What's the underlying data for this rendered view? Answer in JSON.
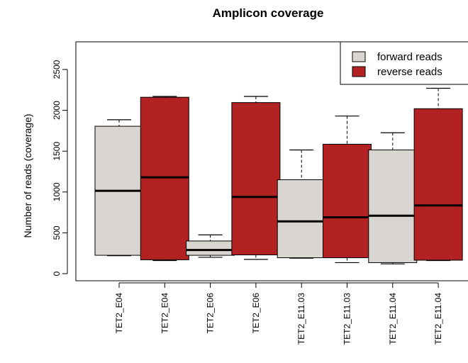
{
  "colors": {
    "forward": "#d9d6d1",
    "reverse": "#b22222",
    "axis": "#000000",
    "background": "#ffffff"
  },
  "chart_data": {
    "type": "boxplot",
    "title": "Amplicon coverage",
    "ylabel": "Number of reads (coverage)",
    "xlabel": "",
    "ylim": [
      0,
      2700
    ],
    "yticks": [
      0,
      500,
      1000,
      1500,
      2000,
      2500
    ],
    "grid": false,
    "legend": {
      "position": "top-right",
      "entries": [
        {
          "label": "forward reads",
          "color": "#d9d6d1"
        },
        {
          "label": "reverse reads",
          "color": "#b22222"
        }
      ]
    },
    "categories": [
      "TET2_E04",
      "TET2_E04",
      "TET2_E06",
      "TET2_E06",
      "TET2_E11.03",
      "TET2_E11.03",
      "TET2_E11.04",
      "TET2_E11.04"
    ],
    "boxes": [
      {
        "group": "forward reads",
        "min": 220,
        "q1": 225,
        "median": 1015,
        "q3": 1805,
        "max": 1885
      },
      {
        "group": "reverse reads",
        "min": 160,
        "q1": 170,
        "median": 1180,
        "q3": 2160,
        "max": 2170
      },
      {
        "group": "forward reads",
        "min": 200,
        "q1": 225,
        "median": 290,
        "q3": 400,
        "max": 475
      },
      {
        "group": "reverse reads",
        "min": 175,
        "q1": 230,
        "median": 940,
        "q3": 2095,
        "max": 2170
      },
      {
        "group": "forward reads",
        "min": 190,
        "q1": 195,
        "median": 640,
        "q3": 1150,
        "max": 1515
      },
      {
        "group": "reverse reads",
        "min": 135,
        "q1": 195,
        "median": 690,
        "q3": 1585,
        "max": 1930
      },
      {
        "group": "forward reads",
        "min": 120,
        "q1": 135,
        "median": 710,
        "q3": 1515,
        "max": 1725
      },
      {
        "group": "reverse reads",
        "min": 160,
        "q1": 165,
        "median": 835,
        "q3": 2020,
        "max": 2270
      }
    ]
  }
}
